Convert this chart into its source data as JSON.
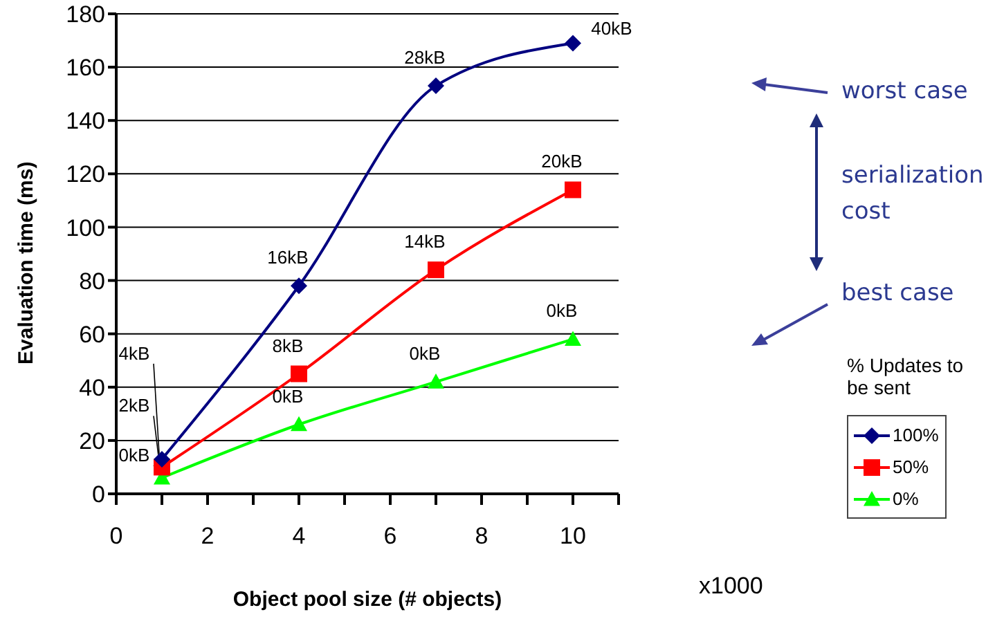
{
  "chart_data": {
    "type": "line",
    "xlabel": "Object pool size (# objects)",
    "ylabel": "Evaluation time (ms)",
    "legend_title": "% Updates to be sent",
    "legend": "right",
    "grid": "y",
    "x": [
      1,
      4,
      7,
      10
    ],
    "xlim": [
      0,
      11
    ],
    "xticks": [
      0,
      {
        "value": 1,
        "label": null
      },
      2,
      {
        "value": 3,
        "label": null
      },
      4,
      {
        "value": 5,
        "label": null
      },
      6,
      {
        "value": 7,
        "label": null
      },
      8,
      {
        "value": 9,
        "label": null
      },
      10,
      {
        "value": 11,
        "label": null
      }
    ],
    "ylim": [
      0,
      180
    ],
    "yticks": [
      0,
      20,
      40,
      60,
      80,
      100,
      120,
      140,
      160,
      180
    ],
    "series": [
      {
        "name": "100%",
        "color": "#000080",
        "marker": "diamond",
        "values": [
          13,
          78,
          153,
          169
        ]
      },
      {
        "name": "50%",
        "color": "#ff0000",
        "marker": "square",
        "values": [
          10,
          45,
          84,
          114
        ]
      },
      {
        "name": "0%",
        "color": "#00ff00",
        "marker": "triangle",
        "values": [
          6,
          26,
          42,
          58
        ]
      }
    ],
    "annotations": [
      "worst case",
      "serialization cost",
      "best case",
      "x1000",
      {
        "text": "4kB",
        "x": 1,
        "y": 13
      },
      {
        "text": "16kB",
        "x": 4,
        "y": 78
      },
      {
        "text": "28kB",
        "x": 7,
        "y": 153
      },
      {
        "text": "40kB",
        "x": 10,
        "y": 169
      },
      {
        "text": "2kB",
        "x": 1,
        "y": 10
      },
      {
        "text": "8kB",
        "x": 4,
        "y": 45
      },
      {
        "text": "14kB",
        "x": 7,
        "y": 84
      },
      {
        "text": "20kB",
        "x": 10,
        "y": 114
      },
      {
        "text": "0kB",
        "x": 1,
        "y": 6
      },
      {
        "text": "0kB",
        "x": 4,
        "y": 26
      },
      {
        "text": "0kB",
        "x": 7,
        "y": 42
      },
      {
        "text": "0kB",
        "x": 10,
        "y": 58
      }
    ]
  }
}
